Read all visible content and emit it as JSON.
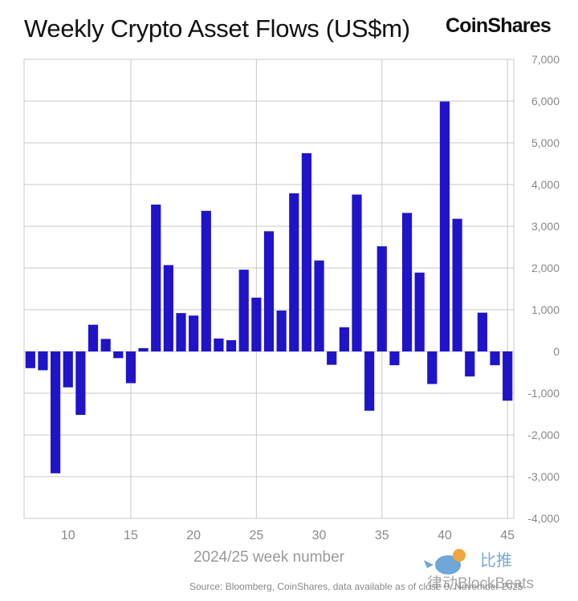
{
  "header": {
    "title": "Weekly Crypto Asset Flows (US$m)",
    "brand": "CoinShares"
  },
  "footer": {
    "source": "Source: Bloomberg, CoinShares, data available as of close 0. November 2025"
  },
  "watermark": {
    "text": "比推",
    "sub": "律动BlockBeats"
  },
  "colors": {
    "bar": "#1f14c8",
    "grid": "#c8c8c8",
    "axis_text": "#888888"
  },
  "chart_data": {
    "type": "bar",
    "title": "Weekly Crypto Asset Flows (US$m)",
    "xlabel": "2024/25 week number",
    "ylabel": "",
    "ylim": [
      -4000,
      7000
    ],
    "yticks": [
      -4000,
      -3000,
      -2000,
      -1000,
      0,
      1000,
      2000,
      3000,
      4000,
      5000,
      6000,
      7000
    ],
    "ytick_labels": [
      "-4,000",
      "-3,000",
      "-2,000",
      "-1,000",
      "0",
      "1,000",
      "2,000",
      "3,000",
      "4,000",
      "5,000",
      "6,000",
      "7,000"
    ],
    "xticks": [
      10,
      15,
      20,
      25,
      30,
      35,
      40,
      45
    ],
    "grid": true,
    "categories": [
      7,
      8,
      9,
      10,
      11,
      12,
      13,
      14,
      15,
      16,
      17,
      18,
      19,
      20,
      21,
      22,
      23,
      24,
      25,
      26,
      27,
      28,
      29,
      30,
      31,
      32,
      33,
      34,
      35,
      36,
      37,
      38,
      39,
      40,
      41,
      42,
      43,
      44,
      45
    ],
    "values": [
      -400,
      -450,
      -2920,
      -860,
      -1520,
      640,
      300,
      -160,
      -760,
      80,
      3520,
      2070,
      920,
      860,
      3370,
      310,
      270,
      1960,
      1290,
      2880,
      980,
      3790,
      4750,
      2180,
      -320,
      580,
      3760,
      -1420,
      2520,
      -330,
      3320,
      1890,
      -780,
      5990,
      3180,
      -600,
      930,
      -330,
      -1180
    ]
  }
}
